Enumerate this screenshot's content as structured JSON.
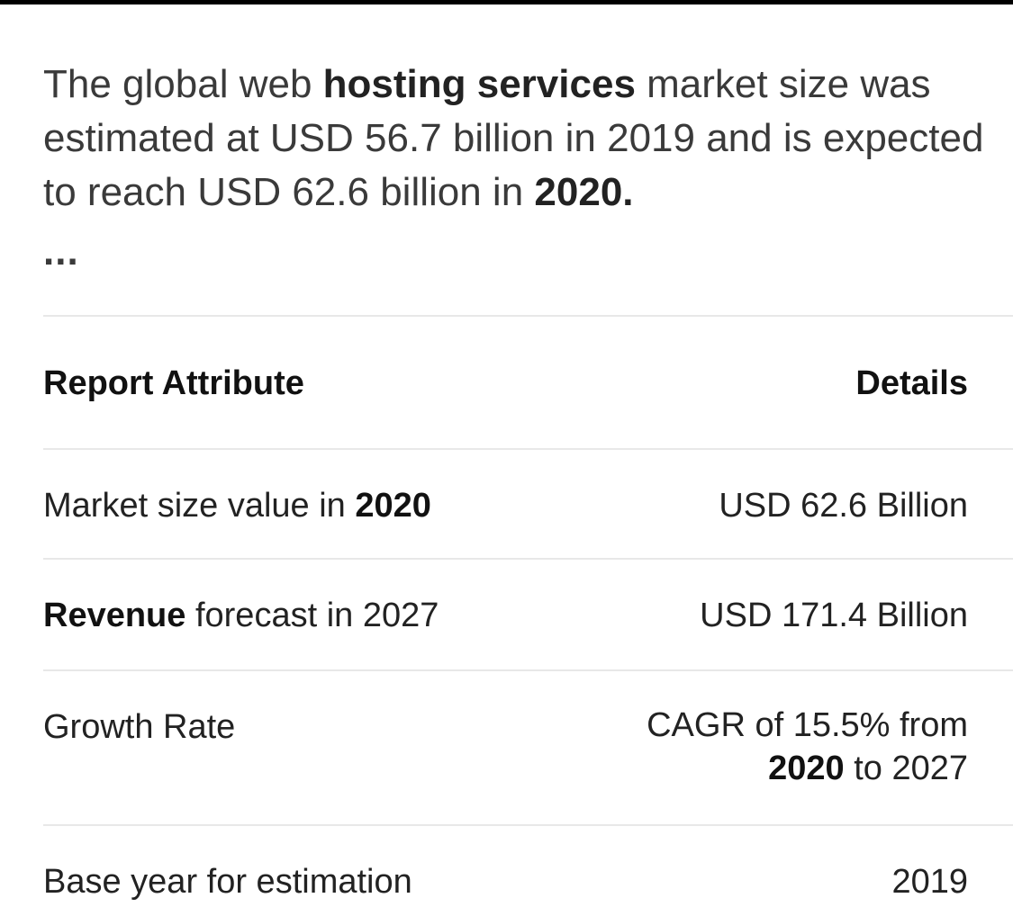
{
  "intro": {
    "part1": "The global web ",
    "part2_bold": "hosting services",
    "part3": " market size was estimated at USD 56.7 billion in 2019 and is expected to reach USD 62.6 billion in ",
    "part4_bold": "2020.",
    "ellipsis": "..."
  },
  "table": {
    "header": {
      "attribute": "Report Attribute",
      "details": "Details"
    },
    "rows": [
      {
        "attr_plain": "Market size value in ",
        "attr_bold": "2020",
        "detail": "USD 62.6 Billion"
      },
      {
        "attr_bold": "Revenue",
        "attr_plain": " forecast in 2027",
        "detail": "USD 171.4 Billion"
      },
      {
        "attr": "Growth Rate",
        "detail_line1": "CAGR of 15.5% from",
        "detail_line2_bold": "2020",
        "detail_line2_plain": " to 2027"
      },
      {
        "attr": "Base year for estimation",
        "detail": "2019"
      }
    ]
  }
}
